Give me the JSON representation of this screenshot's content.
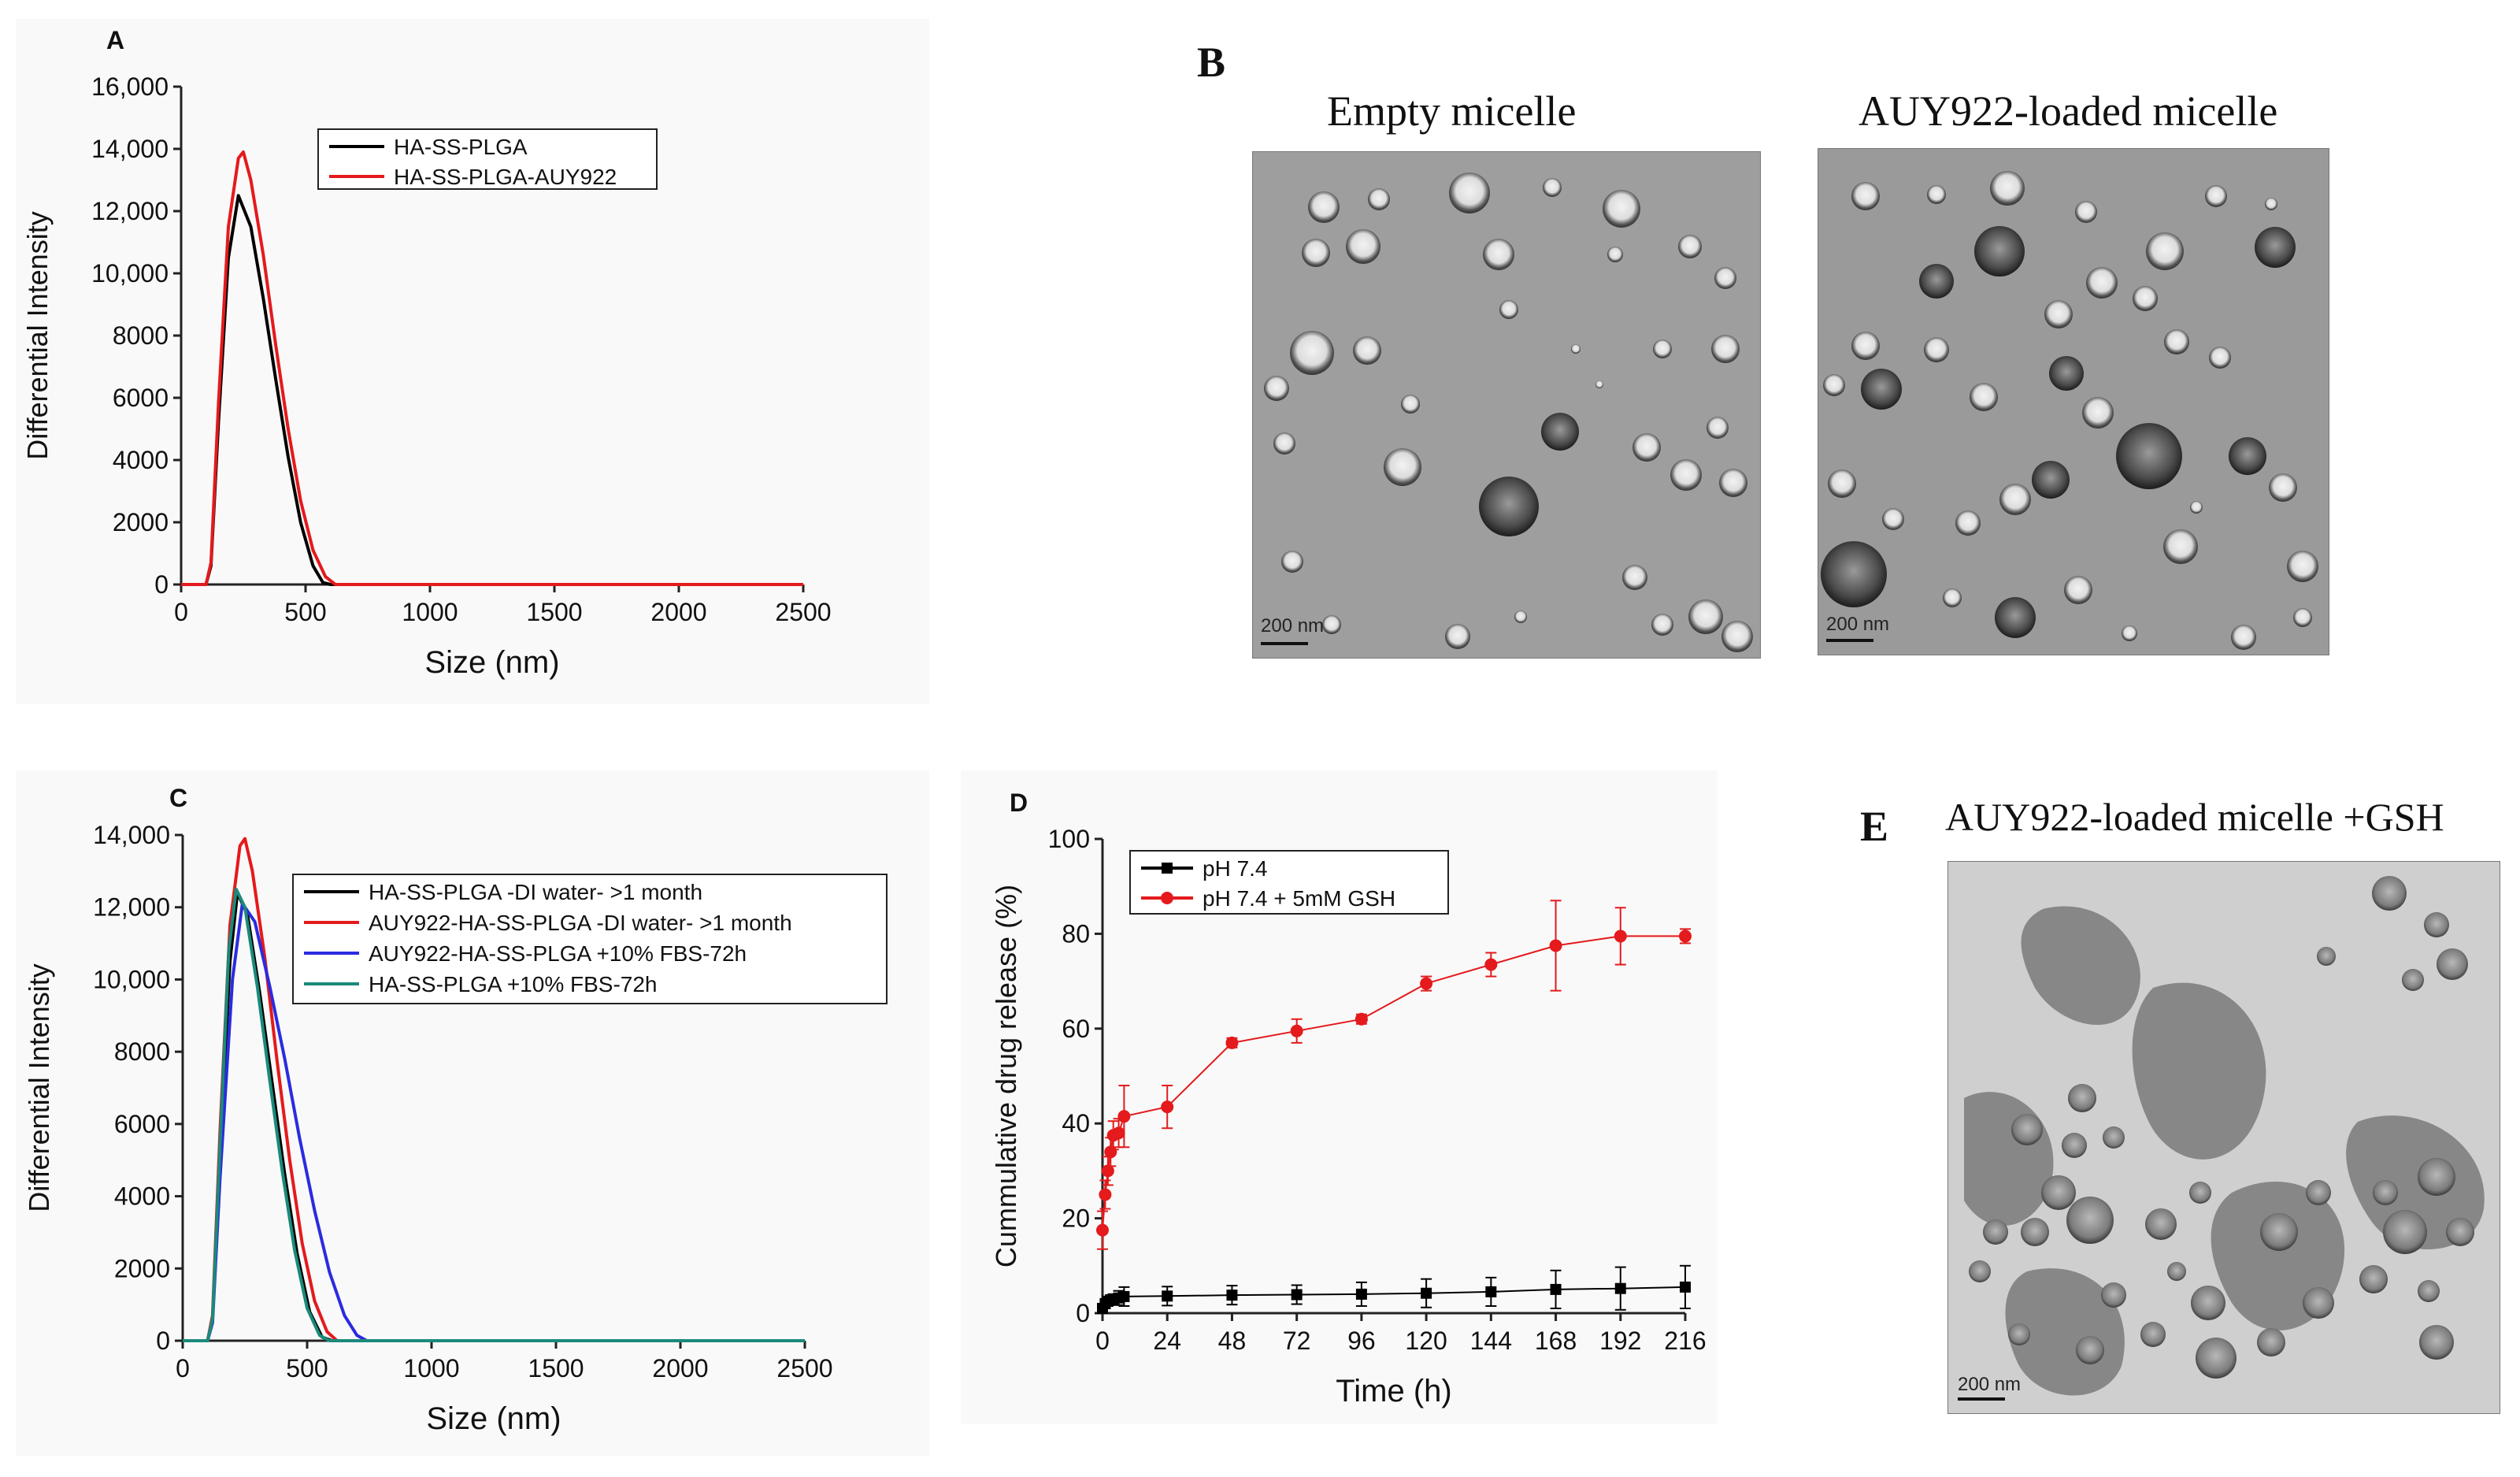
{
  "panels": {
    "A": {
      "letter": "A"
    },
    "B": {
      "letter": "B",
      "left_title": "Empty micelle",
      "right_title": "AUY922-loaded micelle",
      "scale_left": "200 nm",
      "scale_right": "200 nm"
    },
    "C": {
      "letter": "C"
    },
    "D": {
      "letter": "D"
    },
    "E": {
      "letter": "E",
      "title": "AUY922-loaded micelle +GSH",
      "scale": "200 nm"
    }
  },
  "chart_data": [
    {
      "id": "A",
      "type": "line",
      "xlabel": "Size (nm)",
      "ylabel": "Differential Intensity",
      "xlim": [
        0,
        2500
      ],
      "ylim": [
        0,
        16000
      ],
      "xticks": [
        "0",
        "500",
        "1000",
        "1500",
        "2000",
        "2500"
      ],
      "yticks": [
        "0",
        "2000",
        "4000",
        "6000",
        "8000",
        "10,000",
        "12,000",
        "14,000",
        "16,000"
      ],
      "legend_position": "top-center",
      "series": [
        {
          "name": "HA-SS-PLGA",
          "color": "#000000",
          "x": [
            0,
            100,
            120,
            150,
            190,
            230,
            280,
            330,
            380,
            430,
            480,
            530,
            570,
            600,
            2500
          ],
          "y": [
            0,
            0,
            600,
            5200,
            10500,
            12500,
            11500,
            9200,
            6600,
            4100,
            2000,
            600,
            60,
            0,
            0
          ]
        },
        {
          "name": "HA-SS-PLGA-AUY922",
          "color": "#e41a1c",
          "x": [
            0,
            100,
            120,
            150,
            190,
            230,
            250,
            280,
            330,
            380,
            430,
            480,
            530,
            580,
            620,
            2500
          ],
          "y": [
            0,
            0,
            700,
            5800,
            11500,
            13700,
            13900,
            13000,
            10600,
            7700,
            5000,
            2700,
            1100,
            250,
            0,
            0
          ]
        }
      ]
    },
    {
      "id": "C",
      "type": "line",
      "xlabel": "Size (nm)",
      "ylabel": "Differential Intensity",
      "xlim": [
        0,
        2500
      ],
      "ylim": [
        0,
        14000
      ],
      "xticks": [
        "0",
        "500",
        "1000",
        "1500",
        "2000",
        "2500"
      ],
      "yticks": [
        "0",
        "2000",
        "4000",
        "6000",
        "8000",
        "10,000",
        "12,000",
        "14,000"
      ],
      "legend_position": "top-right",
      "series": [
        {
          "name": "HA-SS-PLGA -DI water- >1 month",
          "color": "#000000",
          "x": [
            0,
            100,
            120,
            150,
            190,
            220,
            260,
            310,
            360,
            410,
            460,
            510,
            560,
            600,
            2500
          ],
          "y": [
            0,
            0,
            600,
            5200,
            10500,
            12400,
            11800,
            9600,
            7100,
            4600,
            2400,
            800,
            100,
            0,
            0
          ]
        },
        {
          "name": "AUY922-HA-SS-PLGA -DI water- >1 month",
          "color": "#e41a1c",
          "x": [
            0,
            100,
            120,
            150,
            190,
            230,
            250,
            280,
            330,
            380,
            430,
            480,
            530,
            580,
            620,
            2500
          ],
          "y": [
            0,
            0,
            700,
            5800,
            11500,
            13700,
            13900,
            13000,
            10600,
            7700,
            5000,
            2700,
            1100,
            250,
            0,
            0
          ]
        },
        {
          "name": "AUY922-HA-SS-PLGA +10% FBS-72h",
          "color": "#2b2be0",
          "x": [
            0,
            100,
            120,
            150,
            200,
            240,
            290,
            350,
            410,
            470,
            530,
            590,
            650,
            700,
            740,
            2500
          ],
          "y": [
            0,
            0,
            500,
            4500,
            10000,
            12100,
            11600,
            9800,
            7800,
            5600,
            3600,
            1900,
            700,
            150,
            0,
            0
          ]
        },
        {
          "name": "HA-SS-PLGA +10% FBS-72h",
          "color": "#1b8a7a",
          "x": [
            0,
            100,
            120,
            150,
            185,
            215,
            250,
            300,
            350,
            400,
            450,
            500,
            550,
            590,
            2500
          ],
          "y": [
            0,
            0,
            600,
            5400,
            10800,
            12500,
            12000,
            9800,
            7200,
            4700,
            2500,
            900,
            150,
            0,
            0
          ]
        }
      ]
    },
    {
      "id": "D",
      "type": "line",
      "xlabel": "Time (h)",
      "ylabel": "Cummulative drug release (%)",
      "xlim": [
        0,
        216
      ],
      "ylim": [
        0,
        100
      ],
      "xticks": [
        "0",
        "24",
        "48",
        "72",
        "96",
        "120",
        "144",
        "168",
        "192",
        "216"
      ],
      "yticks": [
        "0",
        "20",
        "40",
        "60",
        "80",
        "100"
      ],
      "legend_position": "top-left",
      "series": [
        {
          "name": "pH 7.4",
          "color": "#000000",
          "marker": "square",
          "x": [
            0,
            1,
            2,
            3,
            4,
            6,
            8,
            24,
            48,
            72,
            96,
            120,
            144,
            168,
            192,
            216
          ],
          "y": [
            1,
            2,
            2.5,
            2.8,
            3,
            3.2,
            3.5,
            3.6,
            3.8,
            3.9,
            4,
            4.2,
            4.5,
            5,
            5.2,
            5.5
          ],
          "err": [
            1,
            1,
            1,
            1,
            1,
            1.5,
            2,
            2,
            2,
            2,
            2.5,
            3,
            3,
            4,
            4.5,
            4.5
          ]
        },
        {
          "name": "pH 7.4 + 5mM GSH",
          "color": "#e41a1c",
          "marker": "circle",
          "x": [
            0,
            1,
            2,
            3,
            4,
            6,
            8,
            24,
            48,
            72,
            96,
            120,
            144,
            168,
            192,
            216
          ],
          "y": [
            17.5,
            25,
            30,
            34,
            37.5,
            38,
            41.5,
            43.5,
            57,
            59.5,
            62,
            69.5,
            73.5,
            77.5,
            79.5,
            79.5
          ],
          "err": [
            4,
            3,
            3,
            3,
            3,
            3,
            6.5,
            4.5,
            1,
            2.5,
            1,
            1.5,
            2.5,
            9.5,
            6,
            1.5
          ]
        }
      ]
    }
  ]
}
